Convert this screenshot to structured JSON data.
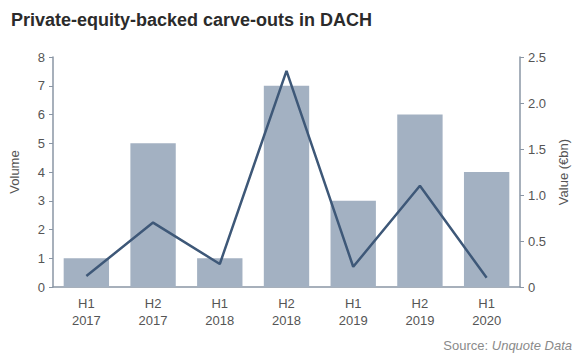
{
  "chart_data": {
    "type": "bar",
    "title": "Private-equity-backed carve-outs in DACH",
    "source": {
      "label": "Source:",
      "name": "Unquote Data"
    },
    "ylabel": "Volume",
    "y2label": "Value (€bn)",
    "categories": [
      "H1\n2017",
      "H2\n2017",
      "H1\n2018",
      "H2\n2018",
      "H1\n2019",
      "H2\n2019",
      "H1\n2020"
    ],
    "series": [
      {
        "type": "bar",
        "color": "#a3b1c2",
        "values": [
          1,
          5,
          1,
          7,
          3,
          6,
          4
        ]
      },
      {
        "type": "line",
        "axis": "y2",
        "color": "#3e5878",
        "values": [
          0.12,
          0.7,
          0.25,
          2.35,
          0.22,
          1.1,
          0.1
        ]
      }
    ],
    "ylim": [
      0,
      8
    ],
    "yticks": [
      0,
      1,
      2,
      3,
      4,
      5,
      6,
      7,
      8
    ],
    "y2lim": [
      0,
      2.5
    ],
    "y2ticks": [
      0,
      0.5,
      {
        "value": 1,
        "label": "1.0"
      },
      1.5,
      {
        "value": 2,
        "label": "2.0"
      },
      2.5
    ],
    "grid": false
  }
}
